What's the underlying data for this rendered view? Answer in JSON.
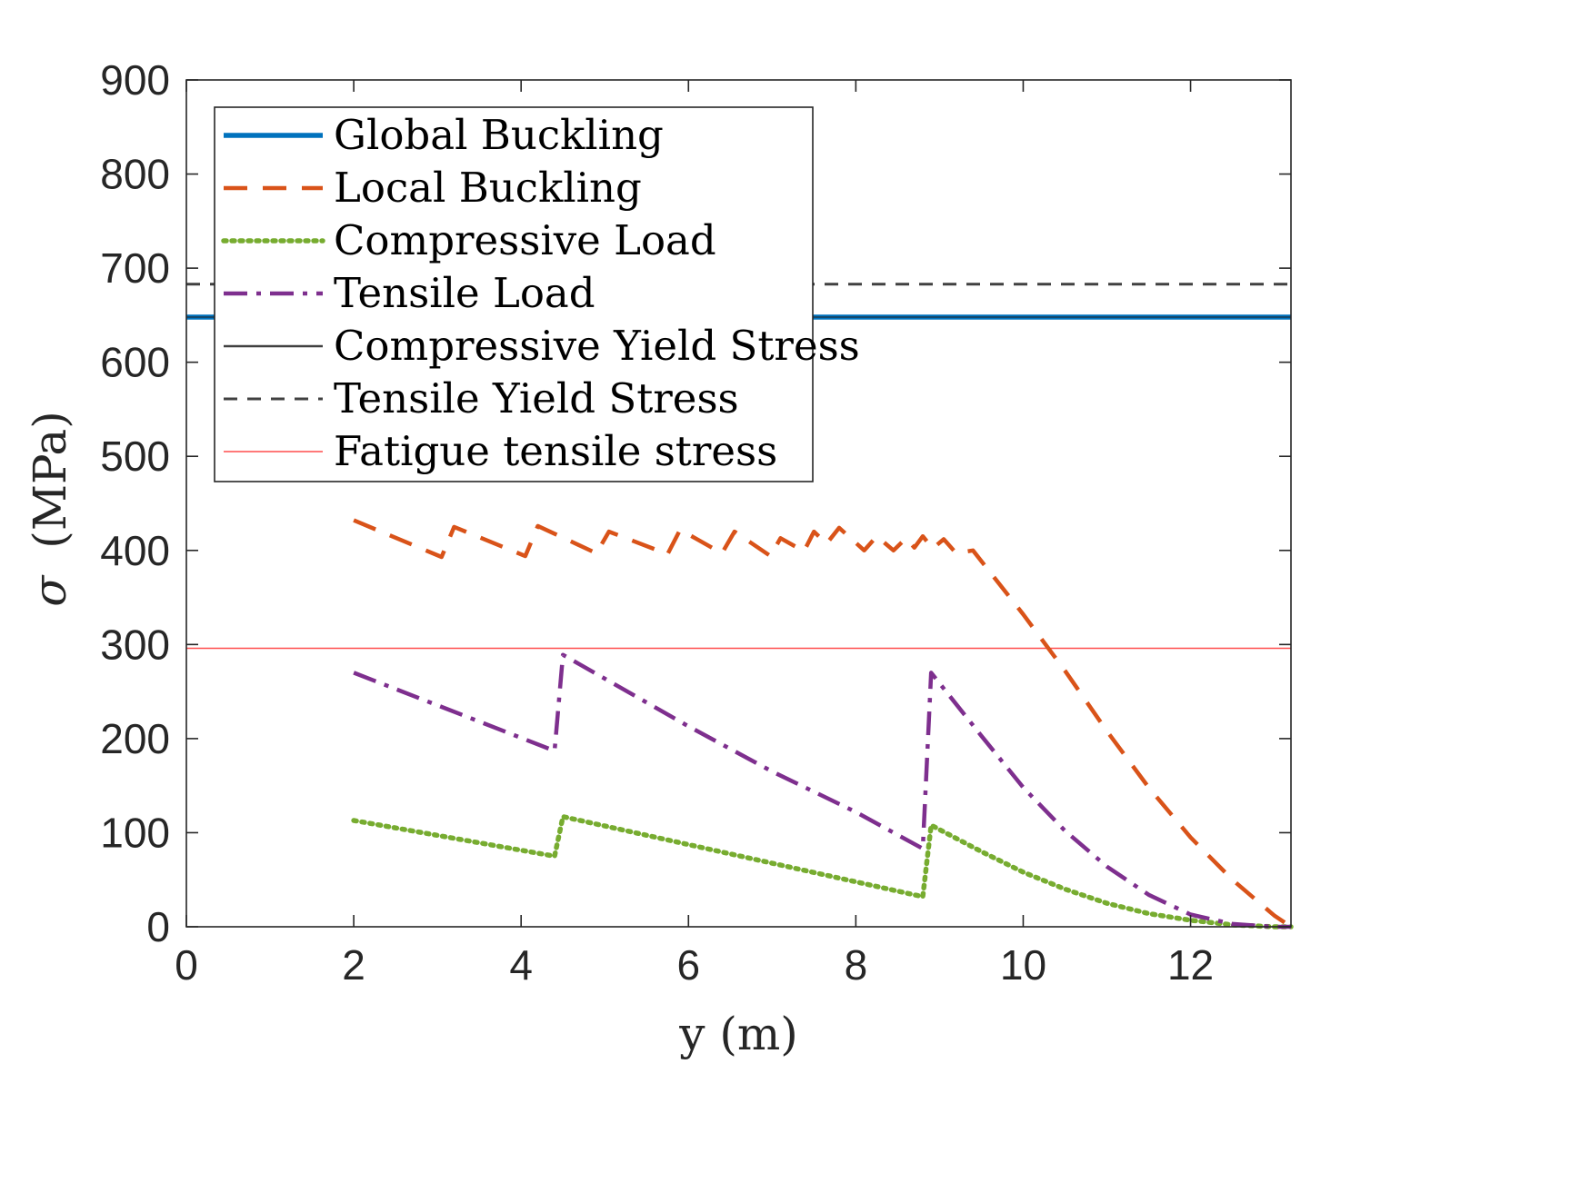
{
  "chart_data": {
    "type": "line",
    "xlabel": "y (m)",
    "ylabel_symbol": "σ",
    "ylabel_unit": "(MPa)",
    "xlim": [
      0,
      13.2
    ],
    "ylim": [
      0,
      900
    ],
    "xticks": [
      0,
      2,
      4,
      6,
      8,
      10,
      12
    ],
    "yticks": [
      0,
      100,
      200,
      300,
      400,
      500,
      600,
      700,
      800,
      900
    ],
    "grid": false,
    "legend_position": "top-left",
    "series": [
      {
        "name": "Global Buckling",
        "style": "solid-thick",
        "color": "#0072BD",
        "points": [
          [
            0,
            648
          ],
          [
            13.2,
            648
          ]
        ]
      },
      {
        "name": "Local Buckling",
        "style": "dashed",
        "color": "#D95319",
        "points": [
          [
            2.0,
            432
          ],
          [
            3.05,
            393
          ],
          [
            3.2,
            425
          ],
          [
            4.05,
            394
          ],
          [
            4.2,
            426
          ],
          [
            4.9,
            397
          ],
          [
            5.05,
            420
          ],
          [
            5.75,
            396
          ],
          [
            5.9,
            422
          ],
          [
            6.4,
            397
          ],
          [
            6.55,
            420
          ],
          [
            6.98,
            394
          ],
          [
            7.1,
            413
          ],
          [
            7.38,
            399
          ],
          [
            7.5,
            420
          ],
          [
            7.65,
            407
          ],
          [
            7.8,
            424
          ],
          [
            8.1,
            400
          ],
          [
            8.25,
            415
          ],
          [
            8.45,
            400
          ],
          [
            8.6,
            413
          ],
          [
            8.7,
            403
          ],
          [
            8.8,
            415
          ],
          [
            8.92,
            402
          ],
          [
            9.05,
            412
          ],
          [
            9.2,
            397
          ],
          [
            9.4,
            400
          ],
          [
            10.0,
            332
          ],
          [
            10.5,
            272
          ],
          [
            11.0,
            208
          ],
          [
            11.5,
            148
          ],
          [
            12.0,
            95
          ],
          [
            12.5,
            50
          ],
          [
            13.0,
            12
          ],
          [
            13.2,
            0
          ]
        ]
      },
      {
        "name": "Compressive Load",
        "style": "dotted",
        "color": "#77AC30",
        "points": [
          [
            2.0,
            113
          ],
          [
            4.4,
            75
          ],
          [
            4.5,
            117
          ],
          [
            8.8,
            32
          ],
          [
            8.9,
            108
          ],
          [
            9.5,
            80
          ],
          [
            10.0,
            58
          ],
          [
            10.5,
            40
          ],
          [
            11.0,
            25
          ],
          [
            11.5,
            14
          ],
          [
            12.0,
            7
          ],
          [
            12.5,
            2
          ],
          [
            13.0,
            0
          ],
          [
            13.2,
            0
          ]
        ]
      },
      {
        "name": "Tensile Load",
        "style": "dash-dot",
        "color": "#7E2F8E",
        "points": [
          [
            2.0,
            270
          ],
          [
            4.4,
            187
          ],
          [
            4.5,
            289
          ],
          [
            6.0,
            213
          ],
          [
            7.0,
            165
          ],
          [
            8.0,
            122
          ],
          [
            8.8,
            83
          ],
          [
            8.9,
            270
          ],
          [
            9.5,
            203
          ],
          [
            10.0,
            148
          ],
          [
            10.5,
            102
          ],
          [
            11.0,
            64
          ],
          [
            11.5,
            34
          ],
          [
            12.0,
            13
          ],
          [
            12.5,
            3
          ],
          [
            13.0,
            0
          ],
          [
            13.2,
            0
          ]
        ]
      },
      {
        "name": "Compressive Yield Stress",
        "style": "solid-thin",
        "color": "#404040",
        "points": [
          [
            0,
            648
          ],
          [
            13.2,
            648
          ]
        ]
      },
      {
        "name": "Tensile Yield Stress",
        "style": "dashed-thin",
        "color": "#404040",
        "points": [
          [
            0,
            683
          ],
          [
            13.2,
            683
          ]
        ]
      },
      {
        "name": "Fatigue tensile stress",
        "style": "solid-hairline",
        "color": "#FF4D4D",
        "points": [
          [
            0,
            296
          ],
          [
            13.2,
            296
          ]
        ]
      }
    ]
  }
}
